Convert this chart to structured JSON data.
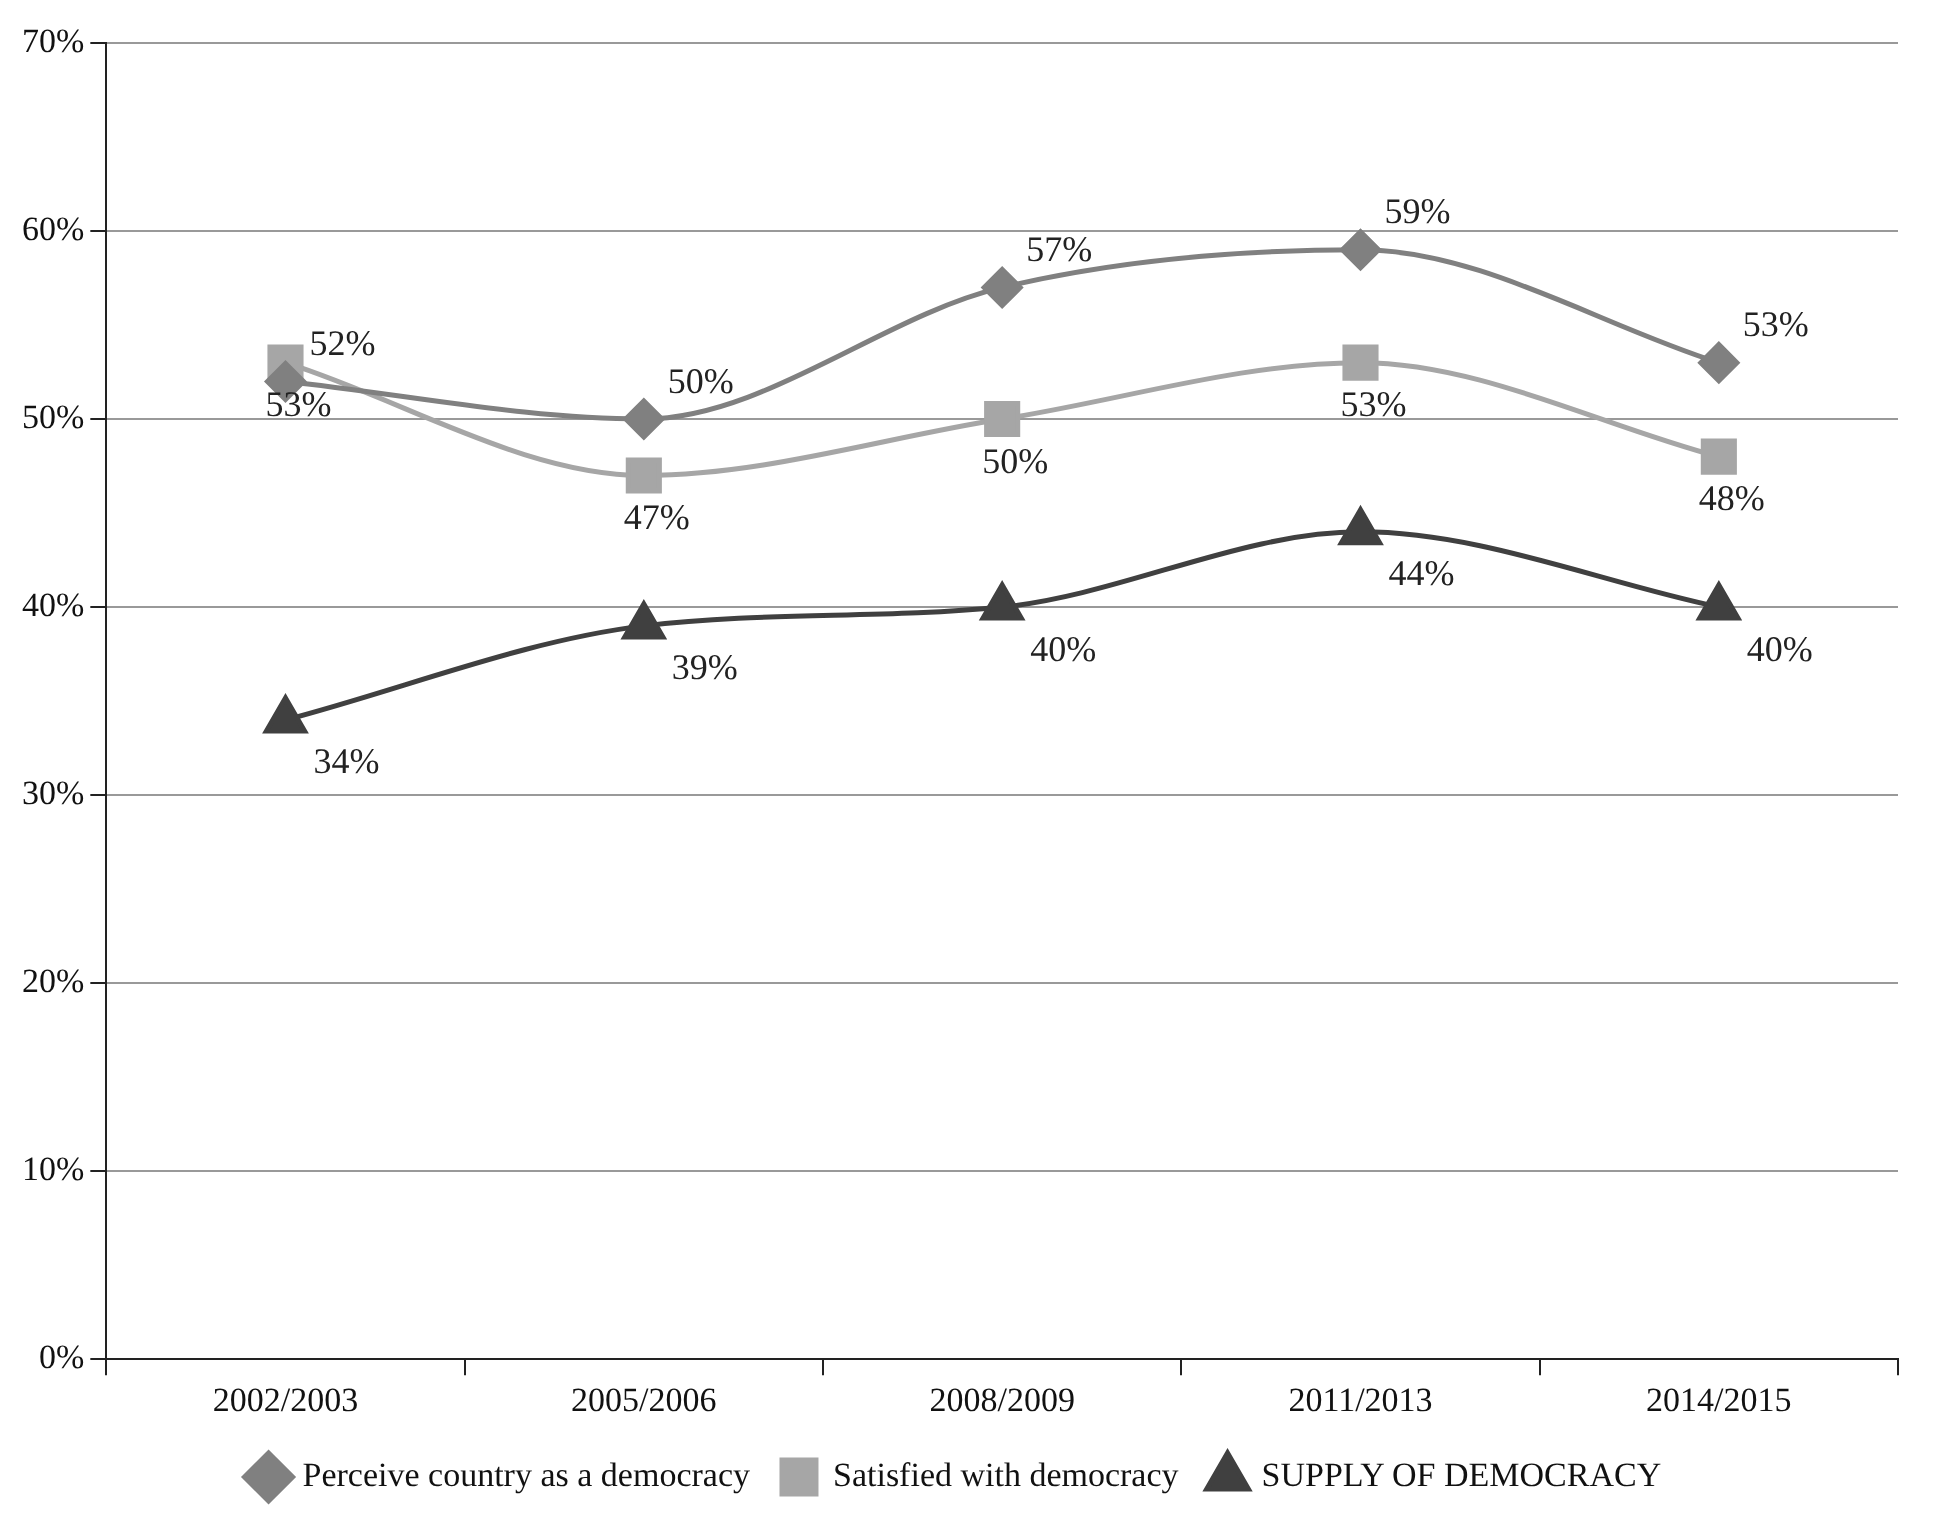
{
  "chart_data": {
    "type": "line",
    "categories": [
      "2002/2003",
      "2005/2006",
      "2008/2009",
      "2011/2013",
      "2014/2015"
    ],
    "series": [
      {
        "name": "Perceive country as a democracy",
        "color": "#808080",
        "marker": "diamond",
        "values": [
          52,
          50,
          57,
          59,
          53
        ],
        "value_labels": [
          "52%",
          "50%",
          "57%",
          "59%",
          "53%"
        ]
      },
      {
        "name": "Satisfied with democracy",
        "color": "#a6a6a6",
        "marker": "square",
        "values": [
          53,
          47,
          50,
          53,
          48
        ],
        "value_labels": [
          "53%",
          "47%",
          "50%",
          "53%",
          "48%"
        ]
      },
      {
        "name": "SUPPLY OF DEMOCRACY",
        "color": "#404040",
        "marker": "triangle",
        "values": [
          34,
          39,
          40,
          44,
          40
        ],
        "value_labels": [
          "34%",
          "39%",
          "40%",
          "44%",
          "40%"
        ]
      }
    ],
    "ylim": [
      0,
      70
    ],
    "yticks": [
      {
        "value": 0,
        "label": "0%"
      },
      {
        "value": 10,
        "label": "10%"
      },
      {
        "value": 20,
        "label": "20%"
      },
      {
        "value": 30,
        "label": "30%"
      },
      {
        "value": 40,
        "label": "40%"
      },
      {
        "value": 50,
        "label": "50%"
      },
      {
        "value": 60,
        "label": "60%"
      },
      {
        "value": 70,
        "label": "70%"
      }
    ],
    "grid": "y",
    "legend": "bottom",
    "line_style": "solid"
  }
}
